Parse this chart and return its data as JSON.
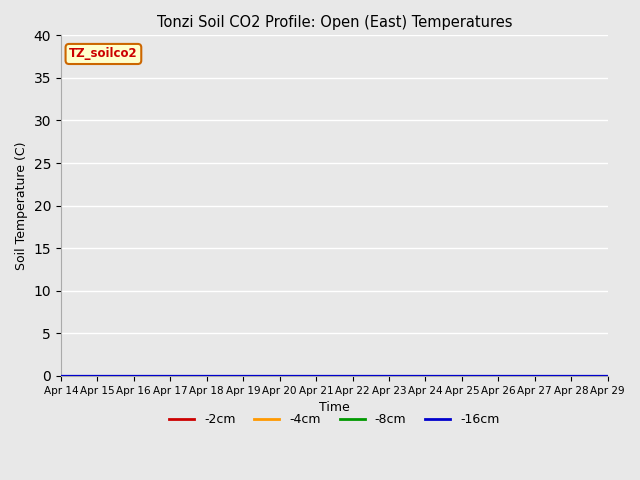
{
  "title": "Tonzi Soil CO2 Profile: Open (East) Temperatures",
  "xlabel": "Time",
  "ylabel": "Soil Temperature (C)",
  "legend_label": "TZ_soilco2",
  "series_labels": [
    "-2cm",
    "-4cm",
    "-8cm",
    "-16cm"
  ],
  "series_colors": [
    "#cc0000",
    "#ff9900",
    "#009900",
    "#0000cc"
  ],
  "ylim": [
    0,
    40
  ],
  "yticks": [
    0,
    5,
    10,
    15,
    20,
    25,
    30,
    35,
    40
  ],
  "xtick_labels": [
    "Apr 14",
    "Apr 15",
    "Apr 16",
    "Apr 17",
    "Apr 18",
    "Apr 19",
    "Apr 20",
    "Apr 21",
    "Apr 22",
    "Apr 23",
    "Apr 24",
    "Apr 25",
    "Apr 26",
    "Apr 27",
    "Apr 28",
    "Apr 29"
  ],
  "background_color": "#e8e8e8",
  "grid_color": "#ffffff",
  "days": 15,
  "n_points": 1500,
  "figsize": [
    6.4,
    4.8
  ],
  "dpi": 100
}
